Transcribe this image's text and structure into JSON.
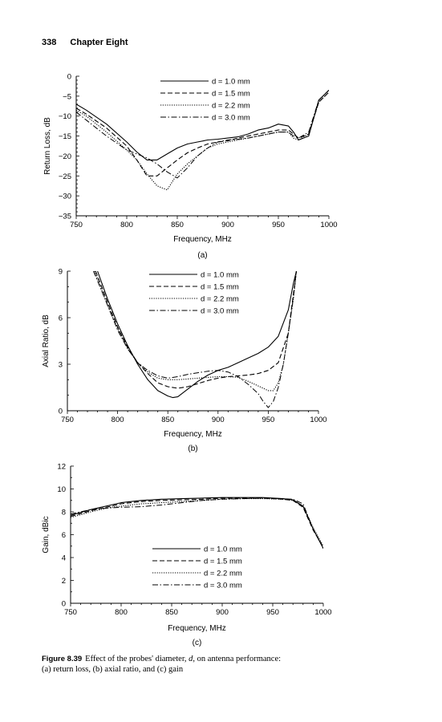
{
  "page": {
    "number": "338",
    "chapter": "Chapter Eight"
  },
  "caption": {
    "label": "Figure 8.39",
    "text_pre": "Effect of the probes' diameter, ",
    "var": "d",
    "text_post": ", on antenna performance:",
    "line2": "(a) return loss, (b) axial ratio, and (c) gain"
  },
  "legend_entries": [
    "d = 1.0 mm",
    "d = 1.5 mm",
    "d = 2.2 mm",
    "d = 3.0 mm"
  ],
  "chart_data": [
    {
      "id": "a",
      "type": "line",
      "panel_label": "(a)",
      "xlabel": "Frequency, MHz",
      "ylabel": "Return Loss, dB",
      "xlim": [
        750,
        1000
      ],
      "ylim": [
        -35,
        0
      ],
      "xticks": [
        750,
        800,
        850,
        900,
        950,
        1000
      ],
      "yticks": [
        -35,
        -30,
        -25,
        -20,
        -15,
        -10,
        -5,
        0
      ],
      "grid": false,
      "legend_position": "top-right",
      "series": [
        {
          "name": "d = 1.0 mm",
          "style": "solid",
          "x": [
            750,
            760,
            780,
            800,
            810,
            820,
            830,
            840,
            850,
            860,
            870,
            880,
            890,
            900,
            910,
            920,
            930,
            940,
            950,
            960,
            965,
            970,
            980,
            990,
            1000
          ],
          "y": [
            -7,
            -8.5,
            -12,
            -16.5,
            -19,
            -21,
            -21,
            -19.5,
            -18,
            -17,
            -16.5,
            -16,
            -15.8,
            -15.5,
            -15.2,
            -14.5,
            -13.5,
            -13,
            -12,
            -12.5,
            -14,
            -16,
            -15,
            -6,
            -3.5
          ]
        },
        {
          "name": "d = 1.5 mm",
          "style": "dashed",
          "x": [
            750,
            760,
            780,
            800,
            810,
            820,
            830,
            840,
            850,
            860,
            870,
            880,
            890,
            900,
            910,
            920,
            930,
            940,
            950,
            960,
            965,
            970,
            980,
            990,
            1000
          ],
          "y": [
            -8,
            -9.5,
            -13,
            -17.5,
            -21,
            -25,
            -25,
            -23,
            -21,
            -19.2,
            -18,
            -17,
            -16.5,
            -16.2,
            -15.5,
            -15,
            -14.5,
            -14,
            -13.5,
            -13.5,
            -14.5,
            -15.5,
            -14.5,
            -6.5,
            -4
          ]
        },
        {
          "name": "d = 2.2 mm",
          "style": "dotted",
          "x": [
            750,
            760,
            780,
            800,
            810,
            820,
            830,
            835,
            840,
            850,
            860,
            870,
            880,
            890,
            900,
            910,
            920,
            930,
            940,
            950,
            960,
            965,
            970,
            980,
            990,
            1000
          ],
          "y": [
            -8.5,
            -10,
            -14,
            -18.5,
            -21,
            -24.5,
            -27.5,
            -28,
            -28.5,
            -24.5,
            -22,
            -20,
            -18,
            -17,
            -16.5,
            -16,
            -15.5,
            -15,
            -14.5,
            -14,
            -14,
            -15.5,
            -16,
            -14.5,
            -6.5,
            -4
          ]
        },
        {
          "name": "d = 3.0 mm",
          "style": "dashdot",
          "x": [
            750,
            760,
            780,
            800,
            810,
            820,
            830,
            840,
            850,
            860,
            870,
            880,
            890,
            900,
            910,
            920,
            930,
            940,
            950,
            960,
            965,
            970,
            980,
            990,
            1000
          ],
          "y": [
            -9,
            -11,
            -15,
            -18.5,
            -19.5,
            -20.5,
            -22,
            -24,
            -25.5,
            -23,
            -20,
            -18,
            -16.5,
            -16,
            -15.8,
            -15.5,
            -15,
            -14.5,
            -14,
            -14,
            -15,
            -15.5,
            -14,
            -6,
            -3.5
          ]
        }
      ]
    },
    {
      "id": "b",
      "type": "line",
      "panel_label": "(b)",
      "xlabel": "Frequency, MHz",
      "ylabel": "Axial Ratio, dB",
      "xlim": [
        750,
        1000
      ],
      "ylim": [
        0,
        9
      ],
      "xticks": [
        750,
        800,
        850,
        900,
        950,
        1000
      ],
      "yticks": [
        0,
        3,
        6,
        9
      ],
      "grid": false,
      "legend_position": "top-center",
      "series": [
        {
          "name": "d = 1.0 mm",
          "style": "solid",
          "x": [
            780,
            790,
            800,
            810,
            820,
            830,
            840,
            850,
            855,
            860,
            870,
            880,
            890,
            900,
            910,
            920,
            930,
            940,
            950,
            960,
            970,
            975,
            978
          ],
          "y": [
            9,
            7.2,
            5.6,
            4.2,
            3,
            2,
            1.3,
            0.95,
            0.85,
            0.9,
            1.4,
            1.9,
            2.3,
            2.6,
            2.8,
            3.1,
            3.4,
            3.7,
            4.1,
            4.8,
            6.5,
            8.2,
            9
          ]
        },
        {
          "name": "d = 1.5 mm",
          "style": "dashed",
          "x": [
            778,
            790,
            800,
            810,
            820,
            830,
            840,
            850,
            860,
            870,
            880,
            890,
            900,
            910,
            920,
            930,
            940,
            950,
            960,
            970,
            975,
            978
          ],
          "y": [
            9,
            7,
            5.4,
            4.1,
            3.1,
            2.4,
            1.8,
            1.55,
            1.45,
            1.55,
            1.75,
            1.95,
            2.1,
            2.2,
            2.25,
            2.3,
            2.4,
            2.6,
            3.1,
            5,
            7.5,
            9
          ]
        },
        {
          "name": "d = 2.2 mm",
          "style": "dotted",
          "x": [
            777,
            790,
            800,
            810,
            820,
            830,
            840,
            850,
            860,
            870,
            880,
            890,
            900,
            910,
            920,
            930,
            940,
            950,
            955,
            960,
            965,
            970,
            975,
            978
          ],
          "y": [
            9,
            6.8,
            5.3,
            4,
            3.1,
            2.5,
            2.1,
            2,
            2,
            2.05,
            2.1,
            2.15,
            2.2,
            2.2,
            2.15,
            1.9,
            1.6,
            1.3,
            1.3,
            1.8,
            3,
            5,
            7.2,
            9
          ]
        },
        {
          "name": "d = 3.0 mm",
          "style": "dashdot",
          "x": [
            776,
            790,
            800,
            810,
            820,
            830,
            840,
            850,
            860,
            870,
            880,
            890,
            900,
            910,
            920,
            930,
            940,
            945,
            950,
            955,
            960,
            965,
            970,
            975,
            978
          ],
          "y": [
            9,
            6.8,
            5.2,
            4,
            3.1,
            2.6,
            2.25,
            2.1,
            2.2,
            2.35,
            2.45,
            2.55,
            2.6,
            2.5,
            2.2,
            1.7,
            1.1,
            0.6,
            0.2,
            0.6,
            1.5,
            3,
            5,
            7.3,
            9
          ]
        }
      ]
    },
    {
      "id": "c",
      "type": "line",
      "panel_label": "(c)",
      "xlabel": "Frequency, MHz",
      "ylabel": "Gain, dBic",
      "xlim": [
        750,
        1000
      ],
      "ylim": [
        0,
        12
      ],
      "xticks": [
        750,
        800,
        850,
        900,
        950,
        1000
      ],
      "yticks": [
        0,
        2,
        4,
        6,
        8,
        10,
        12
      ],
      "grid": false,
      "legend_position": "bottom-center",
      "series": [
        {
          "name": "d = 1.0 mm",
          "style": "solid",
          "x": [
            750,
            770,
            790,
            800,
            820,
            840,
            860,
            880,
            900,
            920,
            940,
            960,
            970,
            980,
            990,
            1000
          ],
          "y": [
            7.7,
            8.2,
            8.6,
            8.8,
            9,
            9.1,
            9.15,
            9.2,
            9.25,
            9.25,
            9.25,
            9.15,
            9.05,
            8.5,
            6.5,
            4.8
          ]
        },
        {
          "name": "d = 1.5 mm",
          "style": "dashed",
          "x": [
            750,
            770,
            790,
            800,
            820,
            840,
            860,
            880,
            900,
            920,
            940,
            960,
            970,
            980,
            990,
            1000
          ],
          "y": [
            7.6,
            8.1,
            8.5,
            8.7,
            8.9,
            9,
            9.05,
            9.1,
            9.2,
            9.2,
            9.2,
            9.1,
            9,
            8.4,
            6.4,
            4.9
          ]
        },
        {
          "name": "d = 2.2 mm",
          "style": "dotted",
          "x": [
            750,
            770,
            790,
            800,
            820,
            840,
            860,
            880,
            900,
            920,
            940,
            960,
            970,
            980,
            990,
            1000
          ],
          "y": [
            7.5,
            8,
            8.4,
            8.5,
            8.7,
            8.8,
            8.9,
            9,
            9.1,
            9.15,
            9.15,
            9.1,
            9,
            8.5,
            6.6,
            5
          ]
        },
        {
          "name": "d = 3.0 mm",
          "style": "dashdot",
          "x": [
            750,
            770,
            790,
            800,
            820,
            840,
            860,
            880,
            900,
            920,
            940,
            960,
            970,
            980,
            990,
            1000
          ],
          "y": [
            7.8,
            8.2,
            8.35,
            8.4,
            8.45,
            8.6,
            8.8,
            9,
            9.1,
            9.15,
            9.2,
            9.15,
            9.1,
            8.7,
            6.5,
            4.8
          ]
        }
      ]
    }
  ]
}
